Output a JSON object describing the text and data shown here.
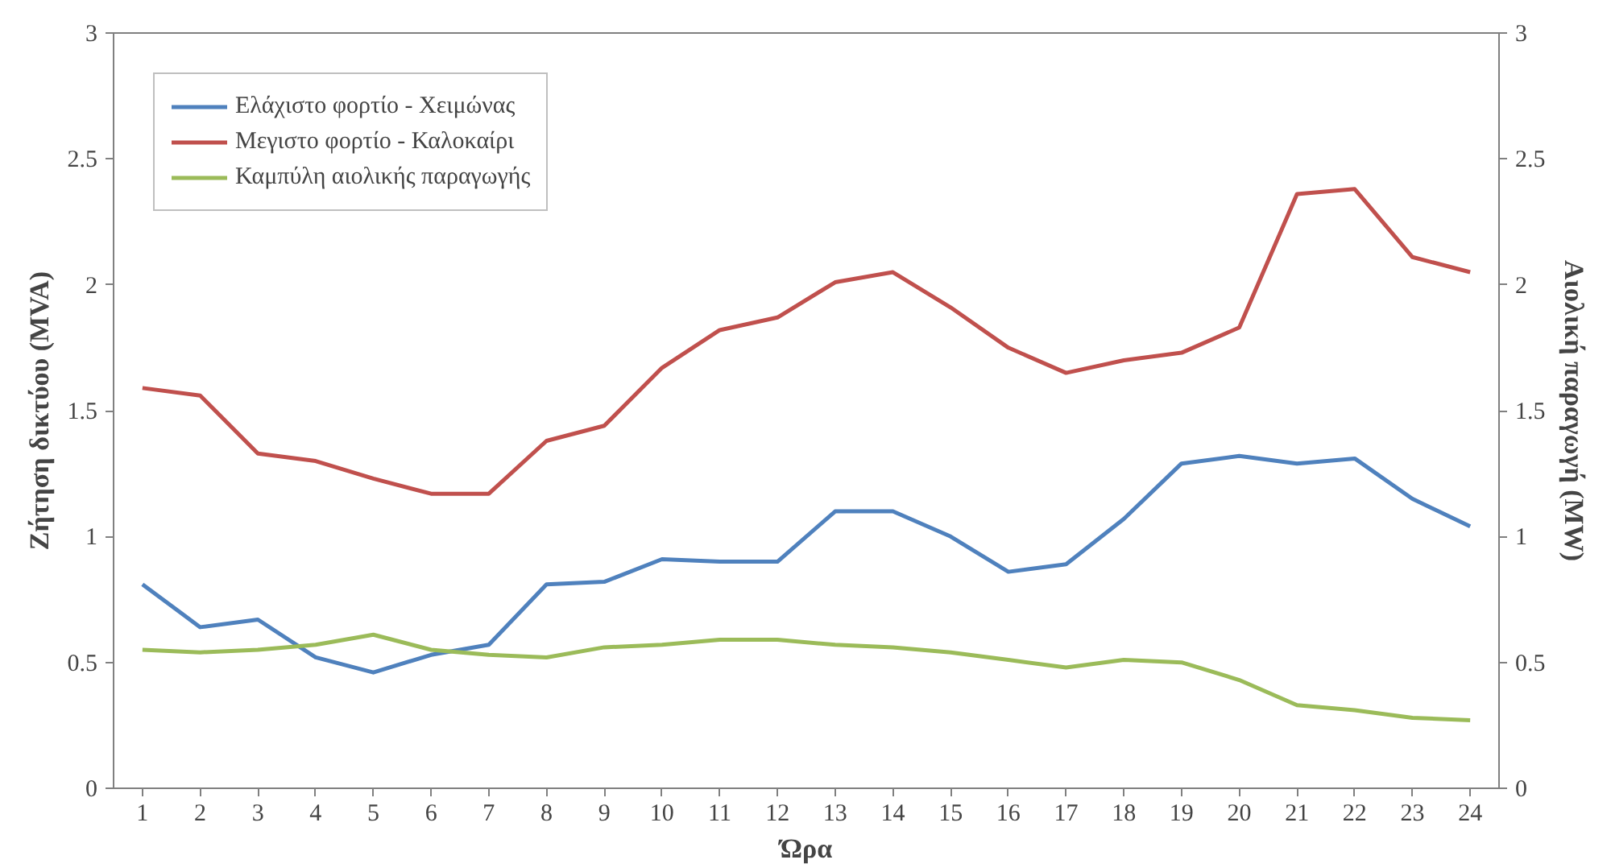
{
  "chart_data": {
    "type": "line",
    "xlabel": "Ώρα",
    "ylabel": "Ζήτηση δικτύου (MVA)",
    "y2label": "Αιολική παραγωγή (MW)",
    "x": [
      1,
      2,
      3,
      4,
      5,
      6,
      7,
      8,
      9,
      10,
      11,
      12,
      13,
      14,
      15,
      16,
      17,
      18,
      19,
      20,
      21,
      22,
      23,
      24
    ],
    "xlim": [
      0.5,
      24.5
    ],
    "xticks": [
      1,
      2,
      3,
      4,
      5,
      6,
      7,
      8,
      9,
      10,
      11,
      12,
      13,
      14,
      15,
      16,
      17,
      18,
      19,
      20,
      21,
      22,
      23,
      24
    ],
    "ylim": [
      0,
      3
    ],
    "yticks": [
      0,
      0.5,
      1,
      1.5,
      2,
      2.5,
      3
    ],
    "y2lim": [
      0,
      3
    ],
    "y2ticks": [
      0,
      0.5,
      1,
      1.5,
      2,
      2.5,
      3
    ],
    "grid": false,
    "legend": "top left",
    "marker": "none",
    "line_style": "solid",
    "series": [
      {
        "name": "Ελάχιστο φορτίο - Χειμώνας",
        "color": "#4f81bd",
        "values": [
          0.81,
          0.64,
          0.67,
          0.52,
          0.46,
          0.53,
          0.57,
          0.81,
          0.82,
          0.91,
          0.9,
          0.9,
          1.1,
          1.1,
          1.0,
          0.86,
          0.89,
          1.07,
          1.29,
          1.32,
          1.29,
          1.31,
          1.15,
          1.04
        ]
      },
      {
        "name": "Μεγιστο φορτίο - Καλοκαίρι",
        "color": "#c0504d",
        "values": [
          1.59,
          1.56,
          1.33,
          1.3,
          1.23,
          1.17,
          1.17,
          1.38,
          1.44,
          1.67,
          1.82,
          1.87,
          2.01,
          2.05,
          1.91,
          1.75,
          1.65,
          1.7,
          1.73,
          1.83,
          2.36,
          2.38,
          2.11,
          2.05
        ]
      },
      {
        "name": "Καμπύλη αιολικής παραγωγής",
        "color": "#9bbb59",
        "axis": "y2",
        "values": [
          0.55,
          0.54,
          0.55,
          0.57,
          0.61,
          0.55,
          0.53,
          0.52,
          0.56,
          0.57,
          0.59,
          0.59,
          0.57,
          0.56,
          0.54,
          0.51,
          0.48,
          0.51,
          0.5,
          0.43,
          0.33,
          0.31,
          0.28,
          0.27
        ]
      }
    ]
  }
}
